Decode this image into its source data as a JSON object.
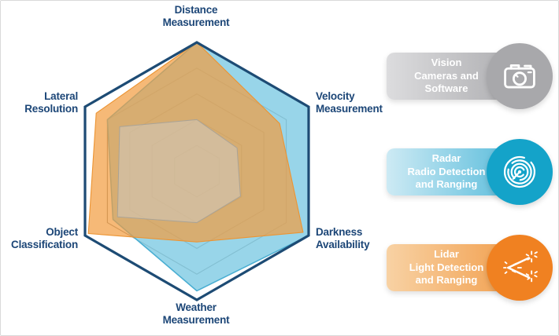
{
  "frame": {
    "background": "#ffffff",
    "border_color": "#d9d9d9"
  },
  "chart_data": {
    "type": "radar",
    "title": "",
    "axes": [
      {
        "id": "distance",
        "lines": [
          "Distance",
          "Measurement"
        ]
      },
      {
        "id": "velocity",
        "lines": [
          "Velocity",
          "Measurement"
        ]
      },
      {
        "id": "darkness",
        "lines": [
          "Darkness",
          "Availability"
        ]
      },
      {
        "id": "weather",
        "lines": [
          "Weather",
          "Measurement"
        ]
      },
      {
        "id": "object",
        "lines": [
          "Object",
          "Classification"
        ]
      },
      {
        "id": "lateral",
        "lines": [
          "Lateral",
          "Resolution"
        ]
      }
    ],
    "scale": {
      "min": 0,
      "max": 1,
      "rings": [
        0.2,
        0.4,
        0.6,
        0.8
      ]
    },
    "series": [
      {
        "name": "Vision",
        "values": [
          0.4,
          0.36,
          0.39,
          0.4,
          0.71,
          0.69
        ],
        "fill": "#cfc9bd",
        "fill_opacity": 0.55,
        "stroke": "#aaa396",
        "stroke_width": 1
      },
      {
        "name": "Radar",
        "values": [
          1.0,
          1.0,
          1.0,
          0.93,
          0.75,
          0.8
        ],
        "fill": "#7ecbe4",
        "fill_opacity": 0.8,
        "stroke": "#49aed2",
        "stroke_width": 1.5
      },
      {
        "name": "Lidar",
        "values": [
          1.0,
          0.74,
          0.95,
          0.55,
          0.97,
          0.9
        ],
        "fill": "#f29b3d",
        "fill_opacity": 0.7,
        "stroke": "#ec9433",
        "stroke_width": 1.1
      }
    ],
    "draw_order": [
      "Radar",
      "Lidar",
      "Vision"
    ],
    "layout": {
      "center": [
        249,
        217
      ],
      "radius": 164,
      "grid": "on",
      "spokes": "off",
      "legend_position": "right"
    },
    "colors": {
      "grid": "#8f8c85",
      "outline": "#1d4b74",
      "axis_label": "#1c4677"
    }
  },
  "legend": {
    "items": [
      {
        "name": "vision",
        "lines": [
          "Vision",
          "Cameras and",
          "Software"
        ],
        "icon": "camera-icon",
        "pill_from": "#dcdcde",
        "pill_to": "#aaaaad",
        "circle_color": "#a8a8ab"
      },
      {
        "name": "radar",
        "lines": [
          "Radar",
          "Radio Detection",
          "and Ranging"
        ],
        "icon": "radar-waves-icon",
        "pill_from": "#cdeaf4",
        "pill_to": "#4fb8d9",
        "circle_color": "#14a3c9"
      },
      {
        "name": "lidar",
        "lines": [
          "Lidar",
          "Light Detection",
          "and Ranging"
        ],
        "icon": "laser-burst-icon",
        "pill_from": "#f8d2a4",
        "pill_to": "#f19b47",
        "circle_color": "#f08121"
      }
    ]
  }
}
